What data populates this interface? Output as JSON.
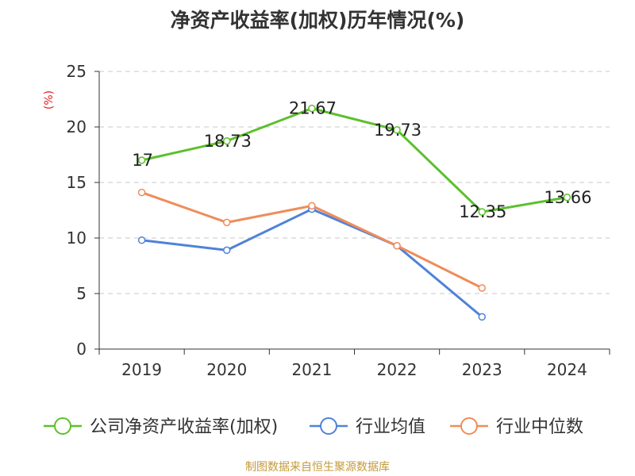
{
  "chart_data": {
    "type": "line",
    "title": "净资产收益率(加权)历年情况(%)",
    "ylabel": "(%)",
    "xlabel": "",
    "categories": [
      "2019",
      "2020",
      "2021",
      "2022",
      "2023",
      "2024"
    ],
    "ylim": [
      0,
      25
    ],
    "yticks": [
      0,
      5,
      10,
      15,
      20,
      25
    ],
    "grid": true,
    "legend_position": "bottom",
    "series": [
      {
        "name": "公司净资产收益率(加权)",
        "color": "#5cc02c",
        "values": [
          17,
          18.73,
          21.67,
          19.73,
          12.35,
          13.66
        ],
        "labels": [
          "17",
          "18.73",
          "21.67",
          "19.73",
          "12.35",
          "13.66"
        ]
      },
      {
        "name": "行业均值",
        "color": "#4f82d8",
        "values": [
          9.8,
          8.9,
          12.6,
          9.3,
          2.9,
          null
        ]
      },
      {
        "name": "行业中位数",
        "color": "#f08c5a",
        "values": [
          14.1,
          11.4,
          12.9,
          9.3,
          5.5,
          null
        ]
      }
    ]
  },
  "source": {
    "text": "制图数据来自恒生聚源数据库",
    "color": "#c49a3a"
  },
  "ylabel_color": "#e02020"
}
